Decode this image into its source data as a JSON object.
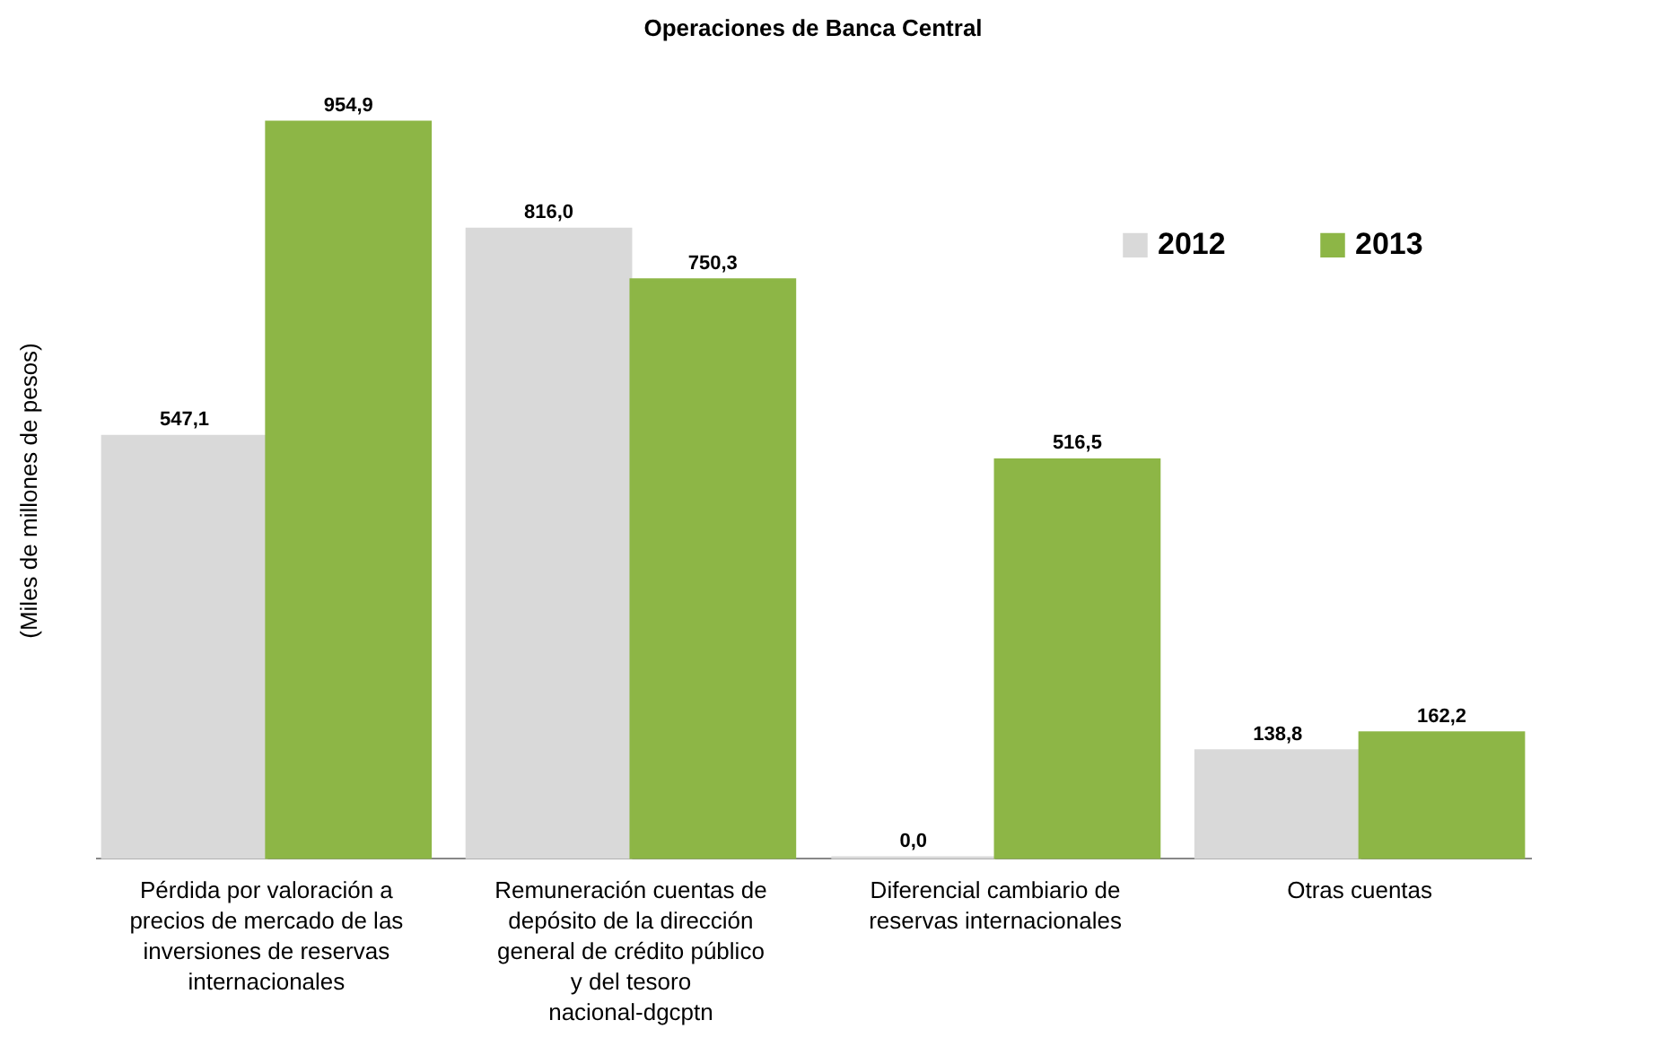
{
  "chart_data": {
    "type": "bar",
    "title": "Operaciones de Banca Central",
    "ylabel": "(Miles de millones de pesos)",
    "categories": [
      "Pérdida por valoración a precios de mercado de las inversiones de reservas internacionales",
      "Remuneración cuentas de depósito de la dirección general de crédito público y del tesoro nacional-dgcptn",
      "Diferencial cambiario de reservas internacionales",
      "Otras cuentas"
    ],
    "series": [
      {
        "name": "2012",
        "color": "#d9d9d9",
        "values": [
          547.1,
          816.0,
          0.0,
          138.8
        ],
        "value_labels": [
          "547,1",
          "816,0",
          "0,0",
          "138,8"
        ]
      },
      {
        "name": "2013",
        "color": "#8db646",
        "values": [
          954.9,
          750.3,
          516.5,
          162.2
        ],
        "value_labels": [
          "954,9",
          "750,3",
          "516,5",
          "162,2"
        ]
      }
    ],
    "legend": "top right",
    "grid": false
  }
}
